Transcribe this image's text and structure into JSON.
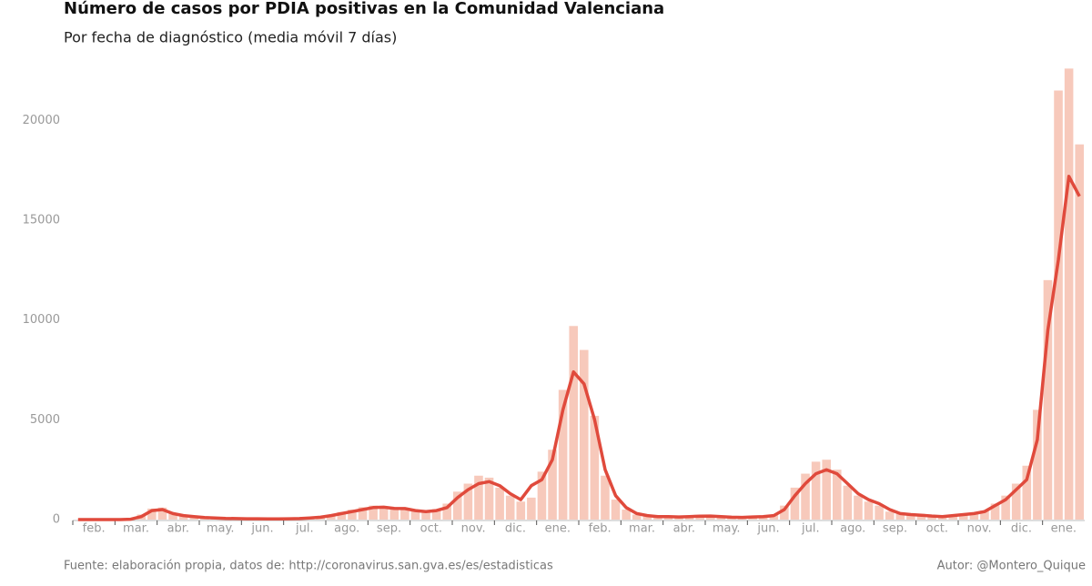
{
  "chart_data": {
    "type": "bar_line",
    "title": "Número de casos por PDIA positivas en la Comunidad Valenciana",
    "subtitle": "Por fecha de diagnóstico (media móvil 7 días)",
    "source": "Fuente: elaboración propia, datos de: http://coronavirus.san.gva.es/es/estadisticas",
    "author": "Autor: @Montero_Quique",
    "categories": [
      "feb.",
      null,
      null,
      null,
      "mar.",
      null,
      null,
      null,
      "abr.",
      null,
      null,
      null,
      "may.",
      null,
      null,
      null,
      "jun.",
      null,
      null,
      null,
      "jul.",
      null,
      null,
      null,
      "ago.",
      null,
      null,
      null,
      "sep.",
      null,
      null,
      null,
      "oct.",
      null,
      null,
      null,
      "nov.",
      null,
      null,
      null,
      "dic.",
      null,
      null,
      null,
      "ene.",
      null,
      null,
      null,
      "feb.",
      null,
      null,
      null,
      "mar.",
      null,
      null,
      null,
      "abr.",
      null,
      null,
      null,
      "may.",
      null,
      null,
      null,
      "jun.",
      null,
      null,
      null,
      "jul.",
      null,
      null,
      null,
      "ago.",
      null,
      null,
      null,
      "sep.",
      null,
      null,
      null,
      "oct.",
      null,
      null,
      null,
      "nov.",
      null,
      null,
      null,
      "dic.",
      null,
      null,
      null,
      "ene.",
      null,
      null,
      null
    ],
    "series": [
      {
        "color": "#f7c9bb",
        "values": [
          0,
          0,
          0,
          0,
          0,
          40,
          250,
          550,
          600,
          320,
          180,
          140,
          90,
          70,
          50,
          40,
          30,
          45,
          25,
          30,
          35,
          60,
          90,
          150,
          250,
          380,
          500,
          620,
          700,
          650,
          580,
          520,
          480,
          380,
          520,
          800,
          1400,
          1800,
          2200,
          2100,
          1600,
          1200,
          900,
          1100,
          2400,
          3500,
          6500,
          9700,
          8500,
          5200,
          2200,
          1000,
          500,
          250,
          180,
          130,
          140,
          120,
          160,
          180,
          190,
          140,
          110,
          100,
          120,
          160,
          250,
          700,
          1600,
          2300,
          2900,
          3000,
          2500,
          1700,
          1200,
          900,
          700,
          400,
          280,
          230,
          200,
          160,
          140,
          220,
          260,
          350,
          450,
          800,
          1200,
          1800,
          2700,
          5500,
          12000,
          21500,
          22600,
          18800
        ]
      },
      {
        "color": "#e04a3c",
        "values": [
          0,
          0,
          0,
          0,
          0,
          20,
          150,
          450,
          500,
          300,
          200,
          150,
          100,
          80,
          60,
          50,
          40,
          40,
          30,
          30,
          40,
          50,
          80,
          120,
          200,
          300,
          400,
          500,
          600,
          620,
          560,
          550,
          450,
          400,
          450,
          600,
          1100,
          1500,
          1800,
          1900,
          1700,
          1300,
          1000,
          1700,
          2000,
          3000,
          5500,
          7400,
          6800,
          5000,
          2500,
          1200,
          600,
          300,
          200,
          150,
          150,
          130,
          150,
          170,
          180,
          150,
          120,
          110,
          130,
          150,
          200,
          500,
          1200,
          1800,
          2300,
          2500,
          2300,
          1800,
          1300,
          1000,
          800,
          500,
          300,
          250,
          220,
          180,
          150,
          200,
          250,
          300,
          400,
          700,
          1000,
          1500,
          2000,
          4000,
          9500,
          13000,
          17200,
          16200
        ]
      }
    ],
    "ylim": [
      0,
      23300
    ],
    "yticks": [
      0,
      5000,
      10000,
      15000,
      20000
    ]
  }
}
